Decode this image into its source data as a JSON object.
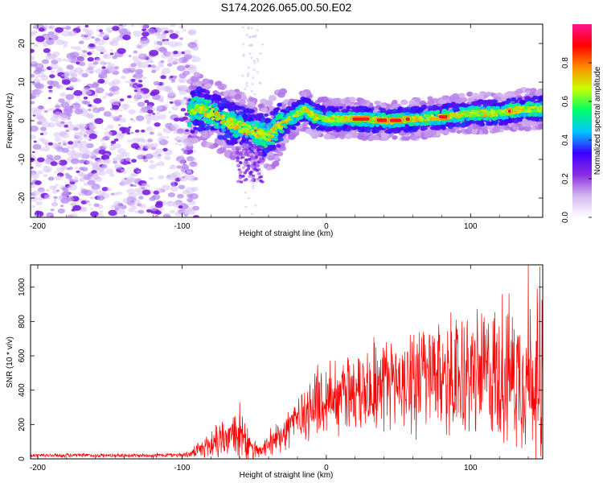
{
  "title": "S174.2026.065.00.50.E02",
  "chart_data": [
    {
      "type": "heatmap",
      "xlabel": "Height of straight line (km)",
      "ylabel": "Frequency (Hz)",
      "xlim": [
        -205,
        150
      ],
      "ylim": [
        -25,
        25
      ],
      "x_ticks": [
        -200,
        -100,
        0,
        100
      ],
      "y_ticks": [
        -20,
        -10,
        0,
        10,
        20
      ],
      "colorbar": {
        "label": "Normalized spectral amplitude",
        "range": [
          0.0,
          1.0
        ],
        "ticks": [
          0.0,
          0.2,
          0.4,
          0.6,
          0.8
        ],
        "colors": [
          "#ffffff",
          "#d6b8f0",
          "#8a2be2",
          "#3b00ff",
          "#00c8ff",
          "#00ff66",
          "#c8ff00",
          "#ff8c00",
          "#ff0000",
          "#ff1493"
        ]
      },
      "ridge_center_hz": [
        {
          "x": -95,
          "y": 1.5
        },
        {
          "x": -90,
          "y": 3.5
        },
        {
          "x": -80,
          "y": 2.0
        },
        {
          "x": -70,
          "y": 0.0
        },
        {
          "x": -60,
          "y": -1.5
        },
        {
          "x": -50,
          "y": -3.0
        },
        {
          "x": -40,
          "y": -4.0
        },
        {
          "x": -32,
          "y": -1.0
        },
        {
          "x": -25,
          "y": 0.5
        },
        {
          "x": -15,
          "y": 3.0
        },
        {
          "x": -8,
          "y": 1.0
        },
        {
          "x": 0,
          "y": 0.5
        },
        {
          "x": 20,
          "y": 0.5
        },
        {
          "x": 45,
          "y": 0.0
        },
        {
          "x": 60,
          "y": 0.5
        },
        {
          "x": 80,
          "y": 1.0
        },
        {
          "x": 100,
          "y": 2.0
        },
        {
          "x": 120,
          "y": 2.0
        },
        {
          "x": 135,
          "y": 3.0
        },
        {
          "x": 150,
          "y": 3.0
        }
      ],
      "noise_region_x": [
        -205,
        -90
      ]
    },
    {
      "type": "line",
      "xlabel": "Height of straight line (km)",
      "ylabel": "SNR (10 * v/v)",
      "xlim": [
        -205,
        150
      ],
      "ylim": [
        0,
        1130
      ],
      "x_ticks": [
        -200,
        -100,
        0,
        100
      ],
      "y_ticks": [
        0,
        200,
        400,
        600,
        800,
        1000
      ],
      "series": [
        {
          "name": "SNR",
          "color": "#ff0000",
          "envelope": [
            {
              "x": -205,
              "base": 20,
              "amp": 15
            },
            {
              "x": -120,
              "base": 20,
              "amp": 15
            },
            {
              "x": -95,
              "base": 25,
              "amp": 20
            },
            {
              "x": -85,
              "base": 60,
              "amp": 80
            },
            {
              "x": -75,
              "base": 110,
              "amp": 150
            },
            {
              "x": -60,
              "base": 140,
              "amp": 190
            },
            {
              "x": -52,
              "base": 60,
              "amp": 80
            },
            {
              "x": -45,
              "base": 40,
              "amp": 40
            },
            {
              "x": -35,
              "base": 120,
              "amp": 120
            },
            {
              "x": -20,
              "base": 240,
              "amp": 200
            },
            {
              "x": 0,
              "base": 360,
              "amp": 280
            },
            {
              "x": 30,
              "base": 430,
              "amp": 330
            },
            {
              "x": 60,
              "base": 470,
              "amp": 380
            },
            {
              "x": 90,
              "base": 480,
              "amp": 440
            },
            {
              "x": 120,
              "base": 500,
              "amp": 500
            },
            {
              "x": 150,
              "base": 480,
              "amp": 560
            }
          ],
          "peaks": [
            {
              "x": -60,
              "y": 330
            },
            {
              "x": 33,
              "y": 710
            },
            {
              "x": 90,
              "y": 810
            },
            {
              "x": 122,
              "y": 960
            },
            {
              "x": 140,
              "y": 1130
            },
            {
              "x": 148,
              "y": 1120
            }
          ]
        }
      ]
    }
  ]
}
